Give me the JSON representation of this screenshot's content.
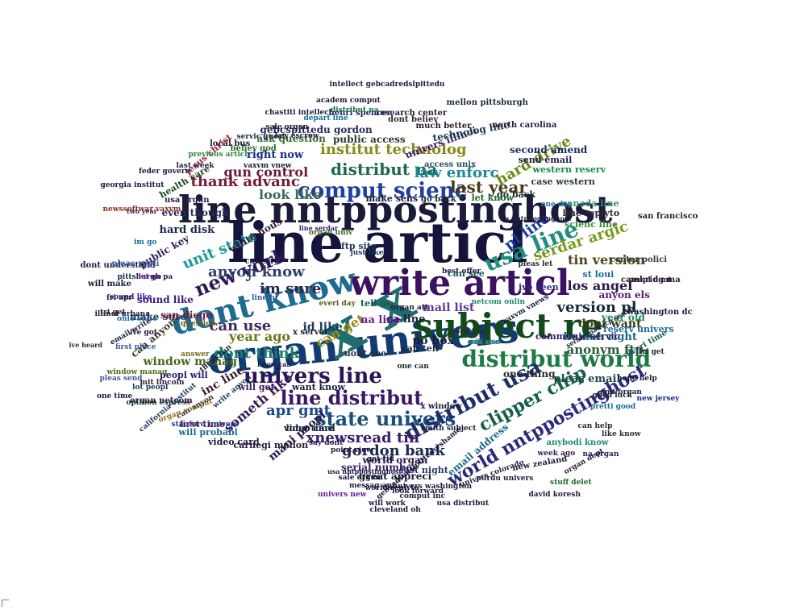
{
  "words": [
    {
      "text": "line articl",
      "color": "#14143c"
    },
    {
      "text": "line nntppostinghost",
      "color": "#1a1a3a"
    },
    {
      "text": "organ univers",
      "color": "#123b72"
    },
    {
      "text": "write articl",
      "color": "#3c1260"
    },
    {
      "text": "subject re",
      "color": "#0f4a1a"
    },
    {
      "text": "x x",
      "color": "#1f6d6d"
    },
    {
      "text": "dont know",
      "color": "#1d6b8f"
    },
    {
      "text": "distribut world",
      "color": "#1d7a45"
    },
    {
      "text": "comput scienc",
      "color": "#1f3f9e"
    },
    {
      "text": "distribut na",
      "color": "#1a6a4a"
    },
    {
      "text": "univers line",
      "color": "#2a1457"
    },
    {
      "text": "line distribut",
      "color": "#3a1766"
    },
    {
      "text": "state univers",
      "color": "#1a4f7a"
    },
    {
      "text": "distribut usa",
      "color": "#1a2f6a"
    },
    {
      "text": "clipper chip",
      "color": "#15604a"
    },
    {
      "text": "usa line",
      "color": "#1e8f7f"
    },
    {
      "text": "world nntppostinghost",
      "color": "#2a2a7a"
    },
    {
      "text": "new york",
      "color": "#2c1a55"
    },
    {
      "text": "unit state",
      "color": "#1a9a9a"
    },
    {
      "text": "anyon know",
      "color": "#2a3f6a"
    },
    {
      "text": "im sure",
      "color": "#2a2a4a"
    },
    {
      "text": "can use",
      "color": "#3f2a5a"
    },
    {
      "text": "dont think",
      "color": "#1a7a6a"
    },
    {
      "text": "year ago",
      "color": "#6a7a1a"
    },
    {
      "text": "xnewsread tin",
      "color": "#3a1a6a"
    },
    {
      "text": "apr gmt",
      "color": "#1a4a8a"
    },
    {
      "text": "gordon bank",
      "color": "#1a2a4a"
    },
    {
      "text": "last year",
      "color": "#4a3a1a"
    },
    {
      "text": "hard drive",
      "color": "#6a8a1a"
    },
    {
      "text": "serdar argic",
      "color": "#7a9a1a"
    },
    {
      "text": "law enforc",
      "color": "#1a8a9a"
    },
    {
      "text": "institut technolog",
      "color": "#8a8a1a"
    },
    {
      "text": "thank advanc",
      "color": "#7a1a3a"
    },
    {
      "text": "look like",
      "color": "#3a6a5a"
    },
    {
      "text": "gun control",
      "color": "#6a1a3a"
    },
    {
      "text": "version pl",
      "color": "#1a2a3a"
    },
    {
      "text": "tin version",
      "color": "#4a4a1a"
    },
    {
      "text": "los angel",
      "color": "#2a1a4a"
    },
    {
      "text": "pl line",
      "color": "#1a3a9a"
    },
    {
      "text": "anonym ftp",
      "color": "#2a5a3a"
    },
    {
      "text": "mail list",
      "color": "#5a3a9a"
    },
    {
      "text": "dont want",
      "color": "#3a3a1a"
    },
    {
      "text": "window manag",
      "color": "#4a6a1a"
    },
    {
      "text": "can get",
      "color": "#9a8a1a"
    },
    {
      "text": "id like",
      "color": "#1a3a5a"
    },
    {
      "text": "po box",
      "color": "#1a1a3a"
    },
    {
      "text": "ca line",
      "color": "#1a1a3a"
    },
    {
      "text": "na line",
      "color": "#6a1a9a"
    },
    {
      "text": "someth like",
      "color": "#3a1a5a"
    },
    {
      "text": "mani peopl",
      "color": "#2a1a4a"
    },
    {
      "text": "one thing",
      "color": "#2a2a2a"
    },
    {
      "text": "human right",
      "color": "#1a6a8a"
    },
    {
      "text": "anyon els",
      "color": "#5a1a6a"
    },
    {
      "text": "pleas email",
      "color": "#1a4a4a"
    },
    {
      "text": "inc line",
      "color": "#3a1a2a"
    },
    {
      "text": "right now",
      "color": "#1a2a8a"
    },
    {
      "text": "ask question",
      "color": "#3a6a2a"
    },
    {
      "text": "public access",
      "color": "#2a3a2a"
    },
    {
      "text": "univers illinoi",
      "color": "#3a1a6a"
    },
    {
      "text": "technolog line",
      "color": "#1a3a4a"
    },
    {
      "text": "center polici",
      "color": "#3a3a3a"
    },
    {
      "text": "san francisco",
      "color": "#1a2a2a"
    },
    {
      "text": "year old",
      "color": "#1a8a5a"
    },
    {
      "text": "hard disk",
      "color": "#1a2a4a"
    },
    {
      "text": "even though",
      "color": "#2a2a5a"
    },
    {
      "text": "sound like",
      "color": "#3a1a8a"
    },
    {
      "text": "make sure",
      "color": "#2a3a5a"
    },
    {
      "text": "can anyon",
      "color": "#3a3a2a"
    },
    {
      "text": "san diego",
      "color": "#6a1a3a"
    },
    {
      "text": "white hous",
      "color": "#3a1a3a"
    },
    {
      "text": "public key",
      "color": "#3a1a5a"
    },
    {
      "text": "email address",
      "color": "#1a6a8a"
    },
    {
      "text": "world organ",
      "color": "#2a1a4a"
    },
    {
      "text": "serial number",
      "color": "#3a1a6a"
    },
    {
      "text": "great appreci",
      "color": "#1a1a3a"
    },
    {
      "text": "last night",
      "color": "#2a3a6a"
    },
    {
      "text": "first time",
      "color": "#6a1a2a"
    },
    {
      "text": "will probabl",
      "color": "#1a6a9a"
    },
    {
      "text": "video card",
      "color": "#1a1a3a"
    },
    {
      "text": "carnegi mellon",
      "color": "#2a1a3a"
    },
    {
      "text": "long time",
      "color": "#1a3a3a"
    },
    {
      "text": "gebcspittedu gordon",
      "color": "#2a2a5a"
    },
    {
      "text": "second amend",
      "color": "#1a2a5a"
    },
    {
      "text": "send email",
      "color": "#2a1a4a"
    },
    {
      "text": "western reserv",
      "color": "#1a8a4a"
    },
    {
      "text": "case western",
      "color": "#2a3a3a"
    },
    {
      "text": "go back",
      "color": "#1a2a2a"
    },
    {
      "text": "let know",
      "color": "#1a6a2a"
    },
    {
      "text": "canada line",
      "color": "#3a8a6a"
    },
    {
      "text": "line replyto",
      "color": "#2a2a2a"
    },
    {
      "text": "scienc line",
      "color": "#3a8a3a"
    },
    {
      "text": "reserv univers",
      "color": "#1a6a9a"
    },
    {
      "text": "communic servic",
      "color": "#3a1a6a"
    },
    {
      "text": "peopl will",
      "color": "#2a1a6a"
    },
    {
      "text": "will get",
      "color": "#3a1a5a"
    },
    {
      "text": "want know",
      "color": "#1a1a3a"
    },
    {
      "text": "x server",
      "color": "#1a1a3a"
    },
    {
      "text": "access unix",
      "color": "#2a4a6a"
    },
    {
      "text": "research center",
      "color": "#2a1a3a"
    },
    {
      "text": "mellon pittsburgh",
      "color": "#1a2a3a"
    },
    {
      "text": "north carolina",
      "color": "#2a1a3a"
    },
    {
      "text": "henri spencer",
      "color": "#1a2a5a"
    },
    {
      "text": "dont believ",
      "color": "#2a2a2a"
    },
    {
      "text": "much better",
      "color": "#2a1a2a"
    },
    {
      "text": "believ god",
      "color": "#2a6a2a"
    },
    {
      "text": "local bus",
      "color": "#1a1a3a"
    },
    {
      "text": "usa organ",
      "color": "#2a1a4a"
    },
    {
      "text": "can say",
      "color": "#1a1a3a"
    },
    {
      "text": "jesus christ",
      "color": "#9a2a3a"
    },
    {
      "text": "health care",
      "color": "#1a4a1a"
    },
    {
      "text": "tell us",
      "color": "#1a5a4a"
    },
    {
      "text": "can see",
      "color": "#1a5a5a"
    },
    {
      "text": "ive seen",
      "color": "#2a2a8a"
    },
    {
      "text": "dont see",
      "color": "#2a2a4a"
    },
    {
      "text": "can tell",
      "color": "#1a2a3a"
    },
    {
      "text": "x window",
      "color": "#1a1a3a"
    },
    {
      "text": "new zealand",
      "color": "#1a1a3a"
    },
    {
      "text": "anybodi know",
      "color": "#1a8a6a"
    },
    {
      "text": "washington dc",
      "color": "#1a1a3a"
    },
    {
      "text": "everi time",
      "color": "#1a5a5a"
    },
    {
      "text": "dont understand",
      "color": "#2a1a4a"
    },
    {
      "text": "organ netcom",
      "color": "#3a1a4a"
    },
    {
      "text": "cambridg ma",
      "color": "#2a1a2a"
    },
    {
      "text": "st loui",
      "color": "#1a6a9a"
    },
    {
      "text": "ftp site",
      "color": "#1a3a5a"
    },
    {
      "text": "make sens",
      "color": "#1a1a3a"
    },
    {
      "text": "pleas repli",
      "color": "#3a5a9a"
    },
    {
      "text": "will make",
      "color": "#1a1a3a"
    },
    {
      "text": "point view",
      "color": "#2a1a4a"
    },
    {
      "text": "say dont",
      "color": "#2a1a4a"
    },
    {
      "text": "world replyto",
      "color": "#1a1a3a"
    },
    {
      "text": "univers colorado",
      "color": "#2a1a3a"
    },
    {
      "text": "video card",
      "color": "#1a1a3a"
    },
    {
      "text": "stanford univers",
      "color": "#1a3a9a"
    },
    {
      "text": "new jersey",
      "color": "#1a2a8a"
    },
    {
      "text": "tri get",
      "color": "#2a2a2a"
    },
    {
      "text": "hope help",
      "color": "#1a1a3a"
    },
    {
      "text": "look forward",
      "color": "#2a1a3a"
    },
    {
      "text": "get rid",
      "color": "#1a1a3a"
    },
    {
      "text": "go back",
      "color": "#1a2a2a"
    },
    {
      "text": "one can",
      "color": "#1a2a2a"
    },
    {
      "text": "can also",
      "color": "#1a8a6a"
    },
    {
      "text": "will use",
      "color": "#3a6a9a"
    },
    {
      "text": "work fine",
      "color": "#2a2a2a"
    },
    {
      "text": "line hi",
      "color": "#2a5a9a"
    },
    {
      "text": "organ univ",
      "color": "#3a6a2a"
    },
    {
      "text": "illinoi urbana",
      "color": "#1a1a3a"
    },
    {
      "text": "pittsburgh pa",
      "color": "#1a2a4a"
    },
    {
      "text": "newssoftwar vaxvm",
      "color": "#8a2a1a"
    },
    {
      "text": "georgia institut",
      "color": "#1a1a3a"
    },
    {
      "text": "two year",
      "color": "#3a1a3a"
    },
    {
      "text": "last week",
      "color": "#2a1a4a"
    },
    {
      "text": "feder govern",
      "color": "#1a1a3a"
    },
    {
      "text": "previous articl",
      "color": "#2a8a3a"
    },
    {
      "text": "sale organ",
      "color": "#1a1a3a"
    },
    {
      "text": "key escrow",
      "color": "#1a1a3a"
    },
    {
      "text": "depart line",
      "color": "#1a6a9a"
    },
    {
      "text": "vaxvm vnew",
      "color": "#1a1a3a"
    },
    {
      "text": "know can",
      "color": "#1a1a3a"
    },
    {
      "text": "ive heard",
      "color": "#2a2a2a"
    },
    {
      "text": "servic guest",
      "color": "#1a2a4a"
    },
    {
      "text": "sale organ",
      "color": "#1a1a3a"
    },
    {
      "text": "messag apr",
      "color": "#2a1a3a"
    },
    {
      "text": "univers new",
      "color": "#6a1a9a"
    },
    {
      "text": "comput inc",
      "color": "#2a1a3a"
    },
    {
      "text": "univers washington",
      "color": "#1a1a3a"
    },
    {
      "text": "can help",
      "color": "#1a2a3a"
    },
    {
      "text": "good luck",
      "color": "#1a1a3a"
    },
    {
      "text": "pretti good",
      "color": "#1a6a9a"
    },
    {
      "text": "emt organ",
      "color": "#1a2a3a"
    },
    {
      "text": "like know",
      "color": "#2a2a2a"
    },
    {
      "text": "na organ",
      "color": "#2a1a5a"
    },
    {
      "text": "week ago",
      "color": "#3a1a4a"
    },
    {
      "text": "organ dept",
      "color": "#1a1a3a"
    },
    {
      "text": "stuff delet",
      "color": "#1a6a2a"
    },
    {
      "text": "david koresh",
      "color": "#2a1a3a"
    },
    {
      "text": "purdu univers",
      "color": "#1a1a3a"
    },
    {
      "text": "smith subject",
      "color": "#1a1a3a"
    },
    {
      "text": "peopl dont",
      "color": "#2a1a3a"
    },
    {
      "text": "best offer",
      "color": "#1a1a3a"
    },
    {
      "text": "one day",
      "color": "#1a6a9a"
    },
    {
      "text": "pleas let",
      "color": "#2a2a2a"
    },
    {
      "text": "netcom onlin",
      "color": "#1a8a6a"
    },
    {
      "text": "everi day",
      "color": "#5a5a1a"
    },
    {
      "text": "im go",
      "color": "#1a6a9a"
    },
    {
      "text": "let go",
      "color": "#6a1a9a"
    },
    {
      "text": "sound like",
      "color": "#3a1a8a"
    },
    {
      "text": "just like",
      "color": "#1a3a5a"
    },
    {
      "text": "organ att",
      "color": "#1a1a3a"
    },
    {
      "text": "ohio state",
      "color": "#1a6a9a"
    },
    {
      "text": "fri apr",
      "color": "#1a1a3a"
    },
    {
      "text": "tri get",
      "color": "#2a2a2a"
    },
    {
      "text": "email write",
      "color": "#1a1a3a"
    },
    {
      "text": "thing can",
      "color": "#1a1a3a"
    },
    {
      "text": "write anyon",
      "color": "#1a3a5a"
    },
    {
      "text": "first place",
      "color": "#3a5a9a"
    },
    {
      "text": "opinion express",
      "color": "#1a3a2a"
    },
    {
      "text": "answer",
      "color": "#7a6a1a"
    },
    {
      "text": "question",
      "color": "#6a5a1a"
    },
    {
      "text": "mit lincoln",
      "color": "#3a1a3a"
    },
    {
      "text": "organ comput",
      "color": "#9a6a1a"
    },
    {
      "text": "can anyon",
      "color": "#3a3a2a"
    },
    {
      "text": "window manag",
      "color": "#4a6a1a"
    },
    {
      "text": "ive got",
      "color": "#1a1a3a"
    },
    {
      "text": "pleas send",
      "color": "#3a5a9a"
    },
    {
      "text": "california institut",
      "color": "#1a3a5a"
    },
    {
      "text": "one time",
      "color": "#1a1a3a"
    },
    {
      "text": "lot peopl",
      "color": "#1a3a5a"
    },
    {
      "text": "cleveland oh",
      "color": "#1a1a3a"
    },
    {
      "text": "will work",
      "color": "#1a1a3a"
    },
    {
      "text": "usa distribut",
      "color": "#1a1a3a"
    },
    {
      "text": "distribut na",
      "color": "#1a6a4a"
    },
    {
      "text": "intellect gebcadredslpittedu",
      "color": "#1a1a3a"
    },
    {
      "text": "academ comput",
      "color": "#1a1a3a"
    },
    {
      "text": "chastiti intellect",
      "color": "#1a1a3a"
    },
    {
      "text": "vaxvm vnews",
      "color": "#1a1a3a"
    },
    {
      "text": "gebcadredslpittedu shame",
      "color": "#1a1a3a"
    },
    {
      "text": "na nntppostinghost",
      "color": "#1a1a3a"
    },
    {
      "text": "usa nntppostinghost",
      "color": "#1a1a3a"
    },
    {
      "text": "line serdar",
      "color": "#3a1a6a"
    },
    {
      "text": "serazumauucp serdar",
      "color": "#1a1a3a"
    }
  ]
}
